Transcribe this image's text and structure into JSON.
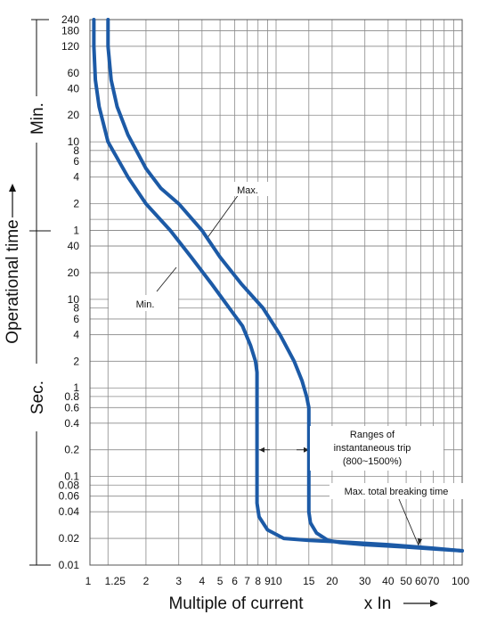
{
  "chart_data": {
    "type": "line",
    "xlabel": "Multiple of current",
    "xunit": "x In",
    "ylabel": "Operational time",
    "yunit_min": "Min.",
    "yunit_sec": "Sec.",
    "x_scale": "log",
    "y_scale": "log",
    "xlim": [
      1,
      100
    ],
    "ylim_seconds": [
      0.01,
      14400
    ],
    "grid": true,
    "x_ticks": [
      {
        "value": 1,
        "label": "1"
      },
      {
        "value": 1.25,
        "label": "1.25"
      },
      {
        "value": 2,
        "label": "2"
      },
      {
        "value": 3,
        "label": "3"
      },
      {
        "value": 4,
        "label": "4"
      },
      {
        "value": 5,
        "label": "5"
      },
      {
        "value": 6,
        "label": "6"
      },
      {
        "value": 7,
        "label": "7"
      },
      {
        "value": 8,
        "label": "8"
      },
      {
        "value": 9,
        "label": "9"
      },
      {
        "value": 10,
        "label": "10"
      },
      {
        "value": 15,
        "label": "15"
      },
      {
        "value": 20,
        "label": "20"
      },
      {
        "value": 30,
        "label": "30"
      },
      {
        "value": 40,
        "label": "40"
      },
      {
        "value": 50,
        "label": "50"
      },
      {
        "value": 60,
        "label": "60"
      },
      {
        "value": 70,
        "label": "70"
      },
      {
        "value": 100,
        "label": "100"
      }
    ],
    "y_ticks_minutes": [
      {
        "value": 240,
        "label": "240"
      },
      {
        "value": 180,
        "label": "180"
      },
      {
        "value": 120,
        "label": "120"
      },
      {
        "value": 60,
        "label": "60"
      },
      {
        "value": 40,
        "label": "40"
      },
      {
        "value": 20,
        "label": "20"
      },
      {
        "value": 10,
        "label": "10"
      },
      {
        "value": 8,
        "label": "8"
      },
      {
        "value": 6,
        "label": "6"
      },
      {
        "value": 4,
        "label": "4"
      },
      {
        "value": 2,
        "label": "2"
      },
      {
        "value": 1,
        "label": "1"
      }
    ],
    "y_ticks_seconds": [
      {
        "value": 40,
        "label": "40"
      },
      {
        "value": 20,
        "label": "20"
      },
      {
        "value": 10,
        "label": "10"
      },
      {
        "value": 8,
        "label": "8"
      },
      {
        "value": 6,
        "label": "6"
      },
      {
        "value": 4,
        "label": "4"
      },
      {
        "value": 2,
        "label": "2"
      },
      {
        "value": 1,
        "label": "1"
      },
      {
        "value": 0.8,
        "label": "0.8"
      },
      {
        "value": 0.6,
        "label": "0.6"
      },
      {
        "value": 0.4,
        "label": "0.4"
      },
      {
        "value": 0.2,
        "label": "0.2"
      },
      {
        "value": 0.1,
        "label": "0.1"
      },
      {
        "value": 0.08,
        "label": "0.08"
      },
      {
        "value": 0.06,
        "label": "0.06"
      },
      {
        "value": 0.04,
        "label": "0.04"
      },
      {
        "value": 0.02,
        "label": "0.02"
      },
      {
        "value": 0.01,
        "label": "0.01"
      }
    ],
    "series": [
      {
        "name": "Min.",
        "color": "#1c5aa6",
        "x": [
          1.05,
          1.05,
          1.07,
          1.12,
          1.25,
          1.6,
          2,
          2.7,
          3.5,
          4.5,
          5.6,
          6.6,
          7.3,
          7.75,
          7.9,
          7.9,
          7.9,
          8.1,
          9,
          11,
          15,
          25,
          40,
          70,
          100
        ],
        "y_seconds": [
          14400,
          7200,
          3000,
          1500,
          600,
          240,
          120,
          60,
          30,
          15,
          8,
          5,
          3,
          2,
          1.5,
          0.5,
          0.05,
          0.035,
          0.025,
          0.02,
          0.019,
          0.018,
          0.017,
          0.0155,
          0.0145
        ]
      },
      {
        "name": "Max.",
        "color": "#1c5aa6",
        "x": [
          1.25,
          1.25,
          1.3,
          1.4,
          1.6,
          2,
          2.4,
          3,
          4,
          5,
          6.5,
          8.5,
          10.5,
          12.5,
          13.8,
          14.6,
          15,
          15,
          15,
          15.3,
          16.5,
          19,
          22,
          30,
          50,
          100
        ],
        "y_seconds": [
          14400,
          7200,
          3000,
          1500,
          720,
          300,
          180,
          120,
          60,
          30,
          15,
          8,
          4,
          2,
          1.2,
          0.8,
          0.6,
          0.1,
          0.04,
          0.03,
          0.023,
          0.019,
          0.018,
          0.017,
          0.016,
          0.0145
        ]
      }
    ],
    "annotations": {
      "min_label": "Min.",
      "max_label": "Max.",
      "instantaneous": [
        "Ranges of",
        "instantaneous trip",
        "(800~1500%)"
      ],
      "max_total_breaking": "Max. total breaking time"
    }
  }
}
